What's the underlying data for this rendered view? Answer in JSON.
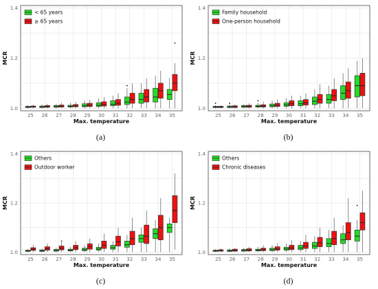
{
  "chart_data": [
    {
      "type": "boxplot",
      "caption": "(a)",
      "xlabel": "Max. temperature",
      "ylabel": "MCR",
      "categories": [
        "25",
        "26",
        "27",
        "28",
        "29",
        "30",
        "31",
        "32",
        "33",
        "34",
        "35"
      ],
      "yticks": [
        "1.0",
        "1.2",
        "1.4"
      ],
      "ylim": [
        0.99,
        1.41
      ],
      "grid": true,
      "legend_position": "top-left",
      "series": [
        {
          "name": "< 65 years",
          "color": "#22dd22",
          "boxes": [
            {
              "min": 1.0,
              "q1": 1.003,
              "median": 1.005,
              "q3": 1.008,
              "max": 1.012
            },
            {
              "min": 1.0,
              "q1": 1.003,
              "median": 1.006,
              "q3": 1.009,
              "max": 1.015
            },
            {
              "min": 1.0,
              "q1": 1.004,
              "median": 1.007,
              "q3": 1.011,
              "max": 1.018
            },
            {
              "min": 1.0,
              "q1": 1.005,
              "median": 1.008,
              "q3": 1.012,
              "max": 1.022
            },
            {
              "min": 1.0,
              "q1": 1.006,
              "median": 1.01,
              "q3": 1.018,
              "max": 1.03
            },
            {
              "min": 1.0,
              "q1": 1.007,
              "median": 1.012,
              "q3": 1.022,
              "max": 1.04
            },
            {
              "min": 1.0,
              "q1": 1.01,
              "median": 1.016,
              "q3": 1.03,
              "max": 1.05
            },
            {
              "min": 1.0,
              "q1": 1.015,
              "median": 1.025,
              "q3": 1.045,
              "max": 1.08,
              "outliers": [
                1.09
              ]
            },
            {
              "min": 1.0,
              "q1": 1.02,
              "median": 1.035,
              "q3": 1.06,
              "max": 1.1
            },
            {
              "min": 1.0,
              "q1": 1.025,
              "median": 1.045,
              "q3": 1.08,
              "max": 1.13
            },
            {
              "min": 1.0,
              "q1": 1.035,
              "median": 1.055,
              "q3": 1.075,
              "max": 1.12
            }
          ]
        },
        {
          "name": "≥ 65 years",
          "color": "#ee1111",
          "boxes": [
            {
              "min": 1.0,
              "q1": 1.004,
              "median": 1.006,
              "q3": 1.009,
              "max": 1.014
            },
            {
              "min": 1.0,
              "q1": 1.004,
              "median": 1.007,
              "q3": 1.011,
              "max": 1.018
            },
            {
              "min": 1.0,
              "q1": 1.005,
              "median": 1.008,
              "q3": 1.013,
              "max": 1.022
            },
            {
              "min": 1.0,
              "q1": 1.006,
              "median": 1.01,
              "q3": 1.015,
              "max": 1.026
            },
            {
              "min": 1.0,
              "q1": 1.007,
              "median": 1.012,
              "q3": 1.02,
              "max": 1.034
            },
            {
              "min": 1.0,
              "q1": 1.009,
              "median": 1.015,
              "q3": 1.026,
              "max": 1.045
            },
            {
              "min": 1.0,
              "q1": 1.012,
              "median": 1.02,
              "q3": 1.035,
              "max": 1.06
            },
            {
              "min": 1.0,
              "q1": 1.02,
              "median": 1.035,
              "q3": 1.06,
              "max": 1.1
            },
            {
              "min": 1.0,
              "q1": 1.025,
              "median": 1.045,
              "q3": 1.075,
              "max": 1.12
            },
            {
              "min": 1.0,
              "q1": 1.04,
              "median": 1.07,
              "q3": 1.1,
              "max": 1.15
            },
            {
              "min": 1.0,
              "q1": 1.07,
              "median": 1.1,
              "q3": 1.135,
              "max": 1.18,
              "outliers": [
                1.26
              ]
            }
          ]
        }
      ]
    },
    {
      "type": "boxplot",
      "caption": "(b)",
      "xlabel": "Max. temperature",
      "ylabel": "MCR",
      "categories": [
        "25",
        "26",
        "27",
        "28",
        "29",
        "30",
        "31",
        "32",
        "33",
        "34",
        "35"
      ],
      "yticks": [
        "1.0",
        "1.2",
        "1.4"
      ],
      "ylim": [
        0.99,
        1.41
      ],
      "grid": true,
      "legend_position": "top-left",
      "series": [
        {
          "name": "Family household",
          "color": "#22dd22",
          "boxes": [
            {
              "min": 1.0,
              "q1": 1.003,
              "median": 1.005,
              "q3": 1.008,
              "max": 1.012,
              "outliers": [
                1.02
              ]
            },
            {
              "min": 1.0,
              "q1": 1.003,
              "median": 1.006,
              "q3": 1.009,
              "max": 1.015,
              "outliers": [
                1.02
              ]
            },
            {
              "min": 1.0,
              "q1": 1.004,
              "median": 1.007,
              "q3": 1.011,
              "max": 1.018
            },
            {
              "min": 1.0,
              "q1": 1.005,
              "median": 1.008,
              "q3": 1.012,
              "max": 1.022,
              "outliers": [
                1.03
              ]
            },
            {
              "min": 1.0,
              "q1": 1.006,
              "median": 1.01,
              "q3": 1.017,
              "max": 1.03
            },
            {
              "min": 1.0,
              "q1": 1.008,
              "median": 1.013,
              "q3": 1.022,
              "max": 1.04
            },
            {
              "min": 1.0,
              "q1": 1.01,
              "median": 1.018,
              "q3": 1.03,
              "max": 1.05
            },
            {
              "min": 1.0,
              "q1": 1.015,
              "median": 1.028,
              "q3": 1.045,
              "max": 1.075
            },
            {
              "min": 1.0,
              "q1": 1.02,
              "median": 1.035,
              "q3": 1.055,
              "max": 1.09
            },
            {
              "min": 1.0,
              "q1": 1.035,
              "median": 1.06,
              "q3": 1.09,
              "max": 1.14
            },
            {
              "min": 1.0,
              "q1": 1.045,
              "median": 1.09,
              "q3": 1.13,
              "max": 1.19
            }
          ]
        },
        {
          "name": "One-person household",
          "color": "#ee1111",
          "boxes": [
            {
              "min": 1.0,
              "q1": 1.003,
              "median": 1.005,
              "q3": 1.008,
              "max": 1.013
            },
            {
              "min": 1.0,
              "q1": 1.003,
              "median": 1.006,
              "q3": 1.01,
              "max": 1.016
            },
            {
              "min": 1.0,
              "q1": 1.004,
              "median": 1.008,
              "q3": 1.012,
              "max": 1.02
            },
            {
              "min": 1.0,
              "q1": 1.005,
              "median": 1.009,
              "q3": 1.014,
              "max": 1.026
            },
            {
              "min": 1.0,
              "q1": 1.007,
              "median": 1.012,
              "q3": 1.02,
              "max": 1.035
            },
            {
              "min": 1.0,
              "q1": 1.01,
              "median": 1.018,
              "q3": 1.03,
              "max": 1.05
            },
            {
              "min": 1.0,
              "q1": 1.013,
              "median": 1.022,
              "q3": 1.035,
              "max": 1.06
            },
            {
              "min": 1.0,
              "q1": 1.02,
              "median": 1.035,
              "q3": 1.055,
              "max": 1.095
            },
            {
              "min": 1.0,
              "q1": 1.03,
              "median": 1.05,
              "q3": 1.075,
              "max": 1.12
            },
            {
              "min": 1.0,
              "q1": 1.04,
              "median": 1.07,
              "q3": 1.105,
              "max": 1.16
            },
            {
              "min": 1.0,
              "q1": 1.05,
              "median": 1.09,
              "q3": 1.14,
              "max": 1.2
            }
          ]
        }
      ]
    },
    {
      "type": "boxplot",
      "caption": "(c)",
      "xlabel": "Max. temperature",
      "ylabel": "MCR",
      "categories": [
        "25",
        "26",
        "27",
        "28",
        "29",
        "30",
        "31",
        "32",
        "33",
        "34",
        "35"
      ],
      "yticks": [
        "1.0",
        "1.2",
        "1.4"
      ],
      "ylim": [
        0.99,
        1.41
      ],
      "grid": true,
      "legend_position": "top-left",
      "series": [
        {
          "name": "Others",
          "color": "#22dd22",
          "boxes": [
            {
              "min": 1.0,
              "q1": 1.003,
              "median": 1.005,
              "q3": 1.008,
              "max": 1.012
            },
            {
              "min": 1.0,
              "q1": 1.003,
              "median": 1.006,
              "q3": 1.009,
              "max": 1.015
            },
            {
              "min": 1.0,
              "q1": 1.004,
              "median": 1.007,
              "q3": 1.011,
              "max": 1.018
            },
            {
              "min": 1.0,
              "q1": 1.005,
              "median": 1.008,
              "q3": 1.012,
              "max": 1.022
            },
            {
              "min": 1.0,
              "q1": 1.006,
              "median": 1.01,
              "q3": 1.016,
              "max": 1.028
            },
            {
              "min": 1.0,
              "q1": 1.008,
              "median": 1.013,
              "q3": 1.02,
              "max": 1.035
            },
            {
              "min": 1.0,
              "q1": 1.012,
              "median": 1.018,
              "q3": 1.028,
              "max": 1.045
            },
            {
              "min": 1.0,
              "q1": 1.02,
              "median": 1.03,
              "q3": 1.045,
              "max": 1.07
            },
            {
              "min": 1.0,
              "q1": 1.04,
              "median": 1.055,
              "q3": 1.07,
              "max": 1.1
            },
            {
              "min": 1.0,
              "q1": 1.055,
              "median": 1.075,
              "q3": 1.095,
              "max": 1.13
            },
            {
              "min": 1.0,
              "q1": 1.08,
              "median": 1.1,
              "q3": 1.115,
              "max": 1.14
            }
          ]
        },
        {
          "name": "Outdoor worker",
          "color": "#ee1111",
          "boxes": [
            {
              "min": 1.0,
              "q1": 1.007,
              "median": 1.012,
              "q3": 1.018,
              "max": 1.03
            },
            {
              "min": 1.0,
              "q1": 1.008,
              "median": 1.014,
              "q3": 1.022,
              "max": 1.035
            },
            {
              "min": 1.0,
              "q1": 1.009,
              "median": 1.016,
              "q3": 1.025,
              "max": 1.04,
              "outliers": [
                1.045
              ]
            },
            {
              "min": 1.0,
              "q1": 1.01,
              "median": 1.018,
              "q3": 1.028,
              "max": 1.045
            },
            {
              "min": 1.0,
              "q1": 1.012,
              "median": 1.022,
              "q3": 1.034,
              "max": 1.055
            },
            {
              "min": 1.0,
              "q1": 1.015,
              "median": 1.028,
              "q3": 1.045,
              "max": 1.075
            },
            {
              "min": 1.0,
              "q1": 1.025,
              "median": 1.042,
              "q3": 1.065,
              "max": 1.1
            },
            {
              "min": 1.0,
              "q1": 1.03,
              "median": 1.055,
              "q3": 1.085,
              "max": 1.14
            },
            {
              "min": 1.0,
              "q1": 1.035,
              "median": 1.065,
              "q3": 1.11,
              "max": 1.17
            },
            {
              "min": 1.0,
              "q1": 1.05,
              "median": 1.1,
              "q3": 1.15,
              "max": 1.22
            },
            {
              "min": 1.01,
              "q1": 1.12,
              "median": 1.17,
              "q3": 1.23,
              "max": 1.32
            }
          ]
        }
      ]
    },
    {
      "type": "boxplot",
      "caption": "(d)",
      "xlabel": "Max. temperature",
      "ylabel": "MCR",
      "categories": [
        "25",
        "26",
        "27",
        "28",
        "29",
        "30",
        "31",
        "32",
        "33",
        "34",
        "35"
      ],
      "yticks": [
        "1.0",
        "1.2",
        "1.4"
      ],
      "ylim": [
        0.99,
        1.41
      ],
      "grid": true,
      "legend_position": "top-left",
      "series": [
        {
          "name": "Others",
          "color": "#22dd22",
          "boxes": [
            {
              "min": 1.0,
              "q1": 1.003,
              "median": 1.005,
              "q3": 1.008,
              "max": 1.012
            },
            {
              "min": 1.0,
              "q1": 1.003,
              "median": 1.006,
              "q3": 1.009,
              "max": 1.015
            },
            {
              "min": 1.0,
              "q1": 1.004,
              "median": 1.007,
              "q3": 1.011,
              "max": 1.018
            },
            {
              "min": 1.0,
              "q1": 1.005,
              "median": 1.008,
              "q3": 1.012,
              "max": 1.022
            },
            {
              "min": 1.0,
              "q1": 1.006,
              "median": 1.01,
              "q3": 1.016,
              "max": 1.028
            },
            {
              "min": 1.0,
              "q1": 1.008,
              "median": 1.013,
              "q3": 1.02,
              "max": 1.035
            },
            {
              "min": 1.0,
              "q1": 1.01,
              "median": 1.017,
              "q3": 1.028,
              "max": 1.045
            },
            {
              "min": 1.0,
              "q1": 1.015,
              "median": 1.025,
              "q3": 1.04,
              "max": 1.065
            },
            {
              "min": 1.0,
              "q1": 1.022,
              "median": 1.035,
              "q3": 1.055,
              "max": 1.09
            },
            {
              "min": 1.0,
              "q1": 1.035,
              "median": 1.05,
              "q3": 1.075,
              "max": 1.11
            },
            {
              "min": 1.0,
              "q1": 1.045,
              "median": 1.065,
              "q3": 1.09,
              "max": 1.13,
              "outliers": [
                1.19
              ]
            }
          ]
        },
        {
          "name": "Chronic diseases",
          "color": "#ee1111",
          "boxes": [
            {
              "min": 1.0,
              "q1": 1.004,
              "median": 1.006,
              "q3": 1.01,
              "max": 1.015
            },
            {
              "min": 1.0,
              "q1": 1.004,
              "median": 1.007,
              "q3": 1.012,
              "max": 1.018
            },
            {
              "min": 1.0,
              "q1": 1.005,
              "median": 1.008,
              "q3": 1.014,
              "max": 1.022
            },
            {
              "min": 1.0,
              "q1": 1.006,
              "median": 1.01,
              "q3": 1.016,
              "max": 1.028
            },
            {
              "min": 1.0,
              "q1": 1.008,
              "median": 1.013,
              "q3": 1.022,
              "max": 1.036
            },
            {
              "min": 1.0,
              "q1": 1.01,
              "median": 1.017,
              "q3": 1.028,
              "max": 1.048
            },
            {
              "min": 1.0,
              "q1": 1.015,
              "median": 1.025,
              "q3": 1.04,
              "max": 1.07
            },
            {
              "min": 1.0,
              "q1": 1.022,
              "median": 1.038,
              "q3": 1.06,
              "max": 1.1
            },
            {
              "min": 1.0,
              "q1": 1.03,
              "median": 1.055,
              "q3": 1.085,
              "max": 1.14
            },
            {
              "min": 1.0,
              "q1": 1.05,
              "median": 1.08,
              "q3": 1.12,
              "max": 1.22
            },
            {
              "min": 1.0,
              "q1": 1.09,
              "median": 1.12,
              "q3": 1.16,
              "max": 1.25
            }
          ]
        }
      ]
    }
  ]
}
